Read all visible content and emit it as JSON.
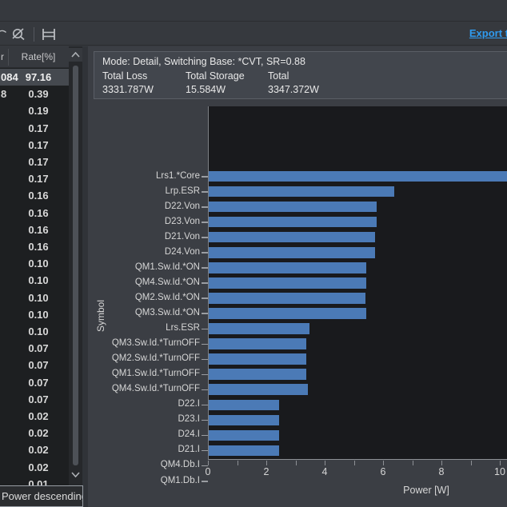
{
  "toolbar": {
    "export_label": "Export t",
    "icons": [
      {
        "name": "partial-arc-icon"
      },
      {
        "name": "eye-slash-icon"
      },
      {
        "name": "ladder-icon"
      }
    ]
  },
  "left_table": {
    "header_partial": "r",
    "rate_header": "Rate[%]",
    "footer": "Power descending",
    "rows": [
      {
        "power_partial": "084",
        "rate": "97.16",
        "selected": true
      },
      {
        "power_partial": "8",
        "rate": "0.39"
      },
      {
        "rate": "0.19"
      },
      {
        "rate": "0.17"
      },
      {
        "rate": "0.17"
      },
      {
        "rate": "0.17"
      },
      {
        "rate": "0.17"
      },
      {
        "rate": "0.16"
      },
      {
        "rate": "0.16"
      },
      {
        "rate": "0.16"
      },
      {
        "rate": "0.16"
      },
      {
        "rate": "0.10"
      },
      {
        "rate": "0.10"
      },
      {
        "rate": "0.10"
      },
      {
        "rate": "0.10"
      },
      {
        "rate": "0.10"
      },
      {
        "rate": "0.07"
      },
      {
        "rate": "0.07"
      },
      {
        "rate": "0.07"
      },
      {
        "rate": "0.07"
      },
      {
        "rate": "0.02"
      },
      {
        "rate": "0.02"
      },
      {
        "rate": "0.02"
      },
      {
        "rate": "0.02"
      },
      {
        "rate": "0.01"
      }
    ]
  },
  "info_panel": {
    "mode_line": "Mode: Detail, Switching Base: *CVT, SR=0.88",
    "totals": [
      {
        "label": "Total Loss",
        "value": "3331.787W"
      },
      {
        "label": "Total Storage",
        "value": "15.584W"
      },
      {
        "label": "Total",
        "value": "3347.372W"
      }
    ]
  },
  "chart_data": {
    "type": "bar",
    "orientation": "horizontal",
    "title": "",
    "xlabel": "Power [W]",
    "ylabel": "Symbol",
    "xlim": [
      0,
      10.25
    ],
    "xticks_labeled": [
      0,
      2,
      4,
      6,
      8,
      10
    ],
    "tick_step": 1,
    "grid": false,
    "bar_color": "#4b7ab6",
    "plot_background": "#191a1d",
    "first_bar_clipped_at_right_edge": true,
    "categories": [
      "Lrs1.*Core",
      "Lrp.ESR",
      "D22.Von",
      "D23.Von",
      "D21.Von",
      "D24.Von",
      "QM1.Sw.Id.*ON",
      "QM4.Sw.Id.*ON",
      "QM2.Sw.Id.*ON",
      "QM3.Sw.Id.*ON",
      "Lrs.ESR",
      "QM3.Sw.Id.*TurnOFF",
      "QM2.Sw.Id.*TurnOFF",
      "QM1.Sw.Id.*TurnOFF",
      "QM4.Sw.Id.*TurnOFF",
      "D22.I",
      "D23.I",
      "D24.I",
      "D21.I",
      "QM4.Db.I",
      "QM1.Db.I"
    ],
    "values": [
      12.0,
      6.35,
      5.75,
      5.75,
      5.7,
      5.7,
      5.4,
      5.4,
      5.38,
      5.4,
      3.45,
      3.35,
      3.35,
      3.35,
      3.4,
      2.4,
      2.42,
      2.4,
      2.4,
      0.52,
      0.55
    ]
  },
  "colors": {
    "window_bg": "#36393e",
    "table_bg": "#1d1f21",
    "selected_row_bg": "#45494f",
    "panel_bg": "#3b3e44",
    "info_box_bg": "#42464d",
    "bar_blue": "#4b7ab6",
    "link_blue": "#2f9bf0",
    "plot_bg": "#191a1d"
  }
}
